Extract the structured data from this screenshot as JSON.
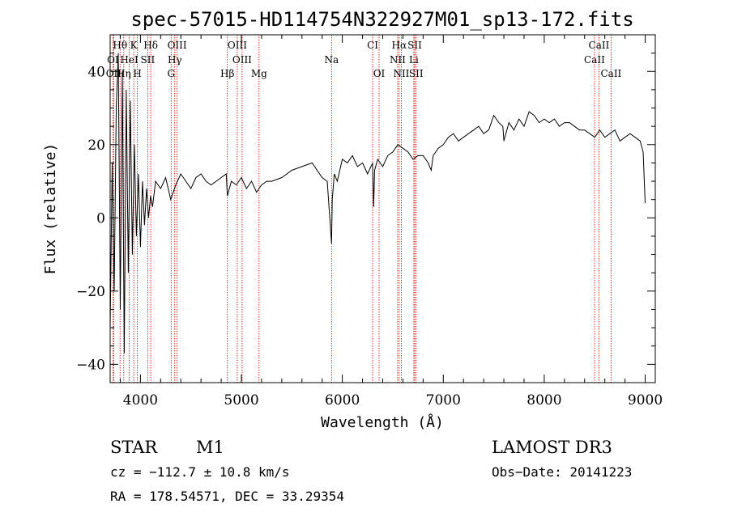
{
  "chart_data": {
    "type": "line",
    "title": "spec-57015-HD114754N322927M01_sp13-172.fits",
    "xlabel": "Wavelength (Å)",
    "ylabel": "Flux (relative)",
    "xlim": [
      3700,
      9100
    ],
    "ylim": [
      -45,
      50
    ],
    "x_ticks": [
      4000,
      5000,
      6000,
      7000,
      8000,
      9000
    ],
    "y_ticks": [
      -40,
      -20,
      0,
      20,
      40
    ],
    "series": [
      {
        "name": "spectrum",
        "x": [
          3700,
          3720,
          3740,
          3760,
          3780,
          3800,
          3820,
          3840,
          3860,
          3880,
          3900,
          3920,
          3940,
          3960,
          3980,
          4000,
          4020,
          4040,
          4060,
          4080,
          4100,
          4120,
          4150,
          4200,
          4250,
          4300,
          4350,
          4400,
          4450,
          4500,
          4550,
          4600,
          4650,
          4700,
          4750,
          4800,
          4850,
          4861,
          4900,
          4950,
          5000,
          5050,
          5100,
          5150,
          5200,
          5250,
          5300,
          5400,
          5500,
          5600,
          5700,
          5800,
          5850,
          5893,
          5900,
          5920,
          5950,
          6000,
          6050,
          6100,
          6150,
          6200,
          6250,
          6300,
          6310,
          6320,
          6350,
          6400,
          6450,
          6500,
          6550,
          6600,
          6650,
          6700,
          6750,
          6800,
          6850,
          6880,
          6900,
          6950,
          7000,
          7050,
          7100,
          7150,
          7200,
          7250,
          7300,
          7350,
          7400,
          7450,
          7500,
          7550,
          7590,
          7600,
          7620,
          7650,
          7700,
          7750,
          7800,
          7850,
          7900,
          7950,
          8000,
          8050,
          8100,
          8150,
          8200,
          8250,
          8300,
          8350,
          8400,
          8450,
          8500,
          8550,
          8600,
          8650,
          8700,
          8750,
          8800,
          8850,
          8900,
          8950,
          8980,
          9000
        ],
        "y": [
          -30,
          15,
          -20,
          30,
          45,
          -25,
          40,
          -37,
          35,
          -15,
          32,
          -10,
          20,
          -5,
          12,
          -8,
          10,
          -2,
          8,
          0,
          6,
          3,
          10,
          8,
          11,
          5,
          9,
          12,
          10,
          8,
          11,
          12,
          10,
          9,
          10,
          11,
          12,
          6,
          10,
          9,
          11,
          8,
          10,
          7,
          9,
          10,
          10,
          11,
          13,
          14,
          15,
          11,
          10,
          -7,
          5,
          12,
          10,
          16,
          15,
          17,
          14,
          15,
          12,
          15,
          3,
          13,
          16,
          14,
          17,
          18,
          20,
          19,
          18,
          16,
          17,
          17,
          15,
          13,
          17,
          19,
          20,
          22,
          23,
          21,
          22,
          23,
          24,
          25,
          23,
          24,
          28,
          26,
          25,
          21,
          23,
          26,
          24,
          27,
          25,
          29,
          28,
          26,
          27,
          26,
          27,
          25,
          26,
          26,
          25,
          24,
          24,
          23,
          22,
          24,
          22,
          23,
          24,
          21,
          22,
          23,
          22,
          21,
          18,
          4
        ]
      }
    ],
    "lines": [
      {
        "label": "Hθ",
        "x": 3798
      },
      {
        "label": "K",
        "x": 3934
      },
      {
        "label": "Hδ",
        "x": 4102
      },
      {
        "label": "OIII",
        "x": 4363
      },
      {
        "label": "OIII",
        "x": 4959
      },
      {
        "label": "CI",
        "x": 6300
      },
      {
        "label": "Hα",
        "x": 6563
      },
      {
        "label": "SII",
        "x": 6717
      },
      {
        "label": "CaII",
        "x": 8542
      },
      {
        "label": "OI",
        "x": 3727
      },
      {
        "label": "HeI",
        "x": 3889
      },
      {
        "label": "SII",
        "x": 4072
      },
      {
        "label": "Hγ",
        "x": 4340
      },
      {
        "label": "OIII",
        "x": 5007
      },
      {
        "label": "Na",
        "x": 5893
      },
      {
        "label": "NII",
        "x": 6548
      },
      {
        "label": "Li",
        "x": 6708
      },
      {
        "label": "CaII",
        "x": 8498
      },
      {
        "label": "OII",
        "x": 3735
      },
      {
        "label": "Hη",
        "x": 3835
      },
      {
        "label": "H",
        "x": 3970
      },
      {
        "label": "G",
        "x": 4304
      },
      {
        "label": "Hβ",
        "x": 4861
      },
      {
        "label": "Mg",
        "x": 5175
      },
      {
        "label": "OI",
        "x": 6364
      },
      {
        "label": "NII",
        "x": 6584
      },
      {
        "label": "SII",
        "x": 6731
      },
      {
        "label": "CaII",
        "x": 8662
      }
    ]
  },
  "info": {
    "object_class": "STAR",
    "subclass": "M1",
    "cz": "cz = −112.7 ± 10.8 km/s",
    "coords": "RA = 178.54571, DEC =  33.29354",
    "survey": "LAMOST DR3",
    "obs_date": "Obs−Date: 20141223"
  },
  "colors": {
    "spectrum": "#000000",
    "line_marker": "#cc0000"
  }
}
